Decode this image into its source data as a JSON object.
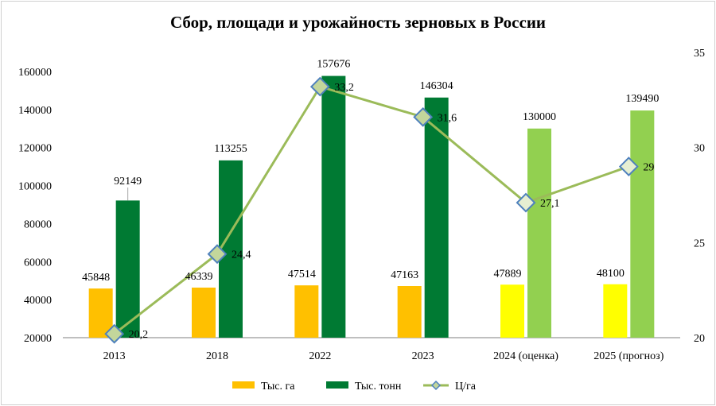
{
  "chart_data": {
    "type": "bar",
    "title": "Сбор, площади и урожайность  зерновых в России",
    "categories": [
      "2013",
      "2018",
      "2022",
      "2023",
      "2024 (оценка)",
      "2025 (прогноз)"
    ],
    "series": [
      {
        "name": "Тыс. га",
        "type": "bar",
        "axis": "left",
        "values": [
          45848,
          46339,
          47514,
          47163,
          47889,
          48100
        ],
        "labels": [
          "45848",
          "46339",
          "47514",
          "47163",
          "47889",
          "48100"
        ]
      },
      {
        "name": "Тыс. тонн",
        "type": "bar",
        "axis": "left",
        "values": [
          92149,
          113255,
          157676,
          146304,
          130000,
          139490
        ],
        "labels": [
          "92149",
          "113255",
          "157676",
          "146304",
          "130000",
          "139490"
        ]
      },
      {
        "name": "Ц/га",
        "type": "line",
        "axis": "right",
        "values": [
          20.2,
          24.4,
          33.2,
          31.6,
          27.1,
          29
        ],
        "labels": [
          "20,2",
          "24,4",
          "33,2",
          "31,6",
          "27,1",
          "29"
        ]
      }
    ],
    "colors": {
      "area_bar": "#ffc000",
      "area_bar_forecast": "#ffff00",
      "harvest_bar": "#007a33",
      "harvest_bar_forecast": "#92d050",
      "yield_line": "#9bbb59",
      "marker_fill": "#c3d69b",
      "marker_fill_forecast": "#e6efd2",
      "marker_stroke": "#4f81bd"
    },
    "y_left": {
      "min": 20000,
      "max": 160000,
      "ticks": [
        "20000",
        "40000",
        "60000",
        "80000",
        "100000",
        "120000",
        "140000",
        "160000"
      ]
    },
    "y_right": {
      "min": 20,
      "max": 35,
      "ticks": [
        "20",
        "25",
        "30",
        "35"
      ]
    },
    "legend_position": "bottom",
    "grid": false
  }
}
